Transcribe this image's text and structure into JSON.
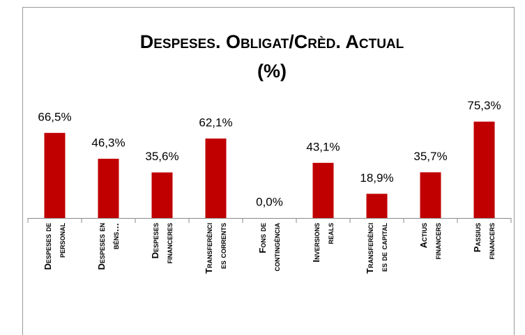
{
  "chart_data": {
    "type": "bar",
    "title": [
      "Despeses. Obligat/Crèd. Actual",
      "(%)"
    ],
    "categories": [
      [
        "Despeses de",
        "personal"
      ],
      [
        "Despeses en",
        "béns…"
      ],
      [
        "Despeses",
        "financeres"
      ],
      [
        "Transferènci",
        "es corrents"
      ],
      [
        "Fons de",
        "contingència"
      ],
      [
        "Inversions",
        "reals"
      ],
      [
        "Transferènci",
        "es de capital"
      ],
      [
        "Actius",
        "financers"
      ],
      [
        "Passius",
        "financers"
      ]
    ],
    "values": [
      66.5,
      46.3,
      35.6,
      62.1,
      0.0,
      43.1,
      18.9,
      35.7,
      75.3
    ],
    "value_labels": [
      "66,5%",
      "46,3%",
      "35,6%",
      "62,1%",
      "0,0%",
      "43,1%",
      "18,9%",
      "35,7%",
      "75,3%"
    ],
    "color": "#c00000",
    "ylim": [
      0,
      80
    ]
  }
}
